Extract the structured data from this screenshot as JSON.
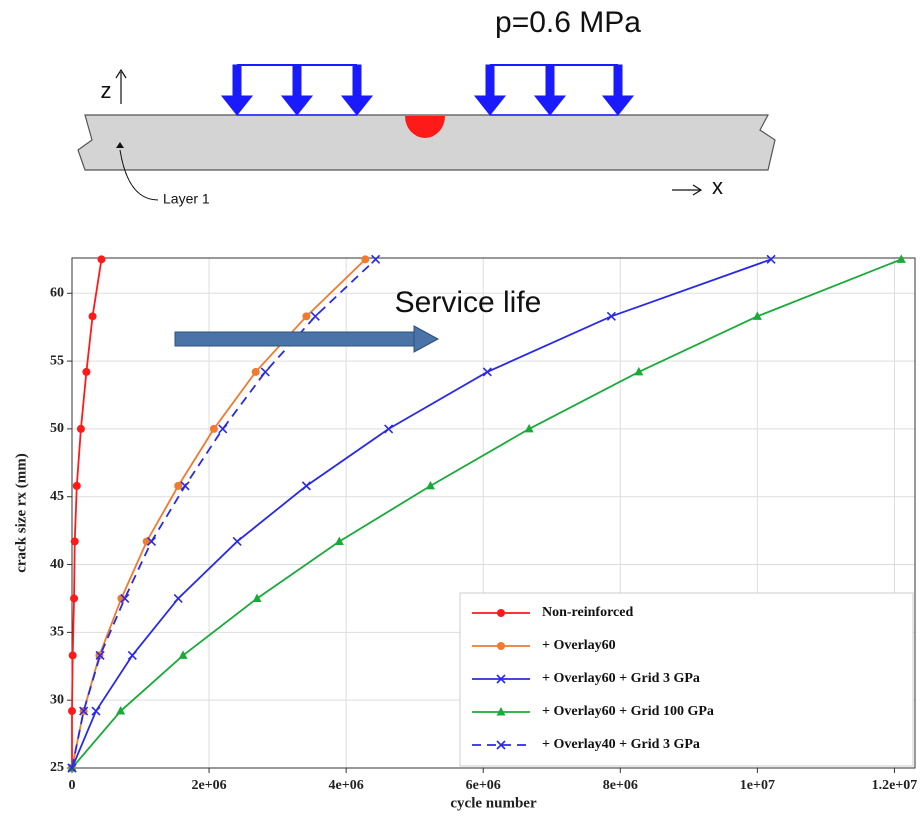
{
  "diagram": {
    "load_label": "p=0.6 MPa",
    "z_label": "z",
    "x_label": "x",
    "layer_label": "Layer 1"
  },
  "chart_data": {
    "type": "line",
    "x_label": "cycle number",
    "y_label": "crack size rx (mm)",
    "annotation": "Service life",
    "xlim": [
      0,
      12300000
    ],
    "ylim": [
      25,
      62.6
    ],
    "xticks": [
      0,
      {
        "value": 2000000,
        "label": "2e+06"
      },
      {
        "value": 4000000,
        "label": "4e+06"
      },
      {
        "value": 6000000,
        "label": "6e+06"
      },
      {
        "value": 8000000,
        "label": "8e+06"
      },
      {
        "value": 10000000,
        "label": "1e+07"
      },
      {
        "value": 12000000,
        "label": "1.2e+07"
      }
    ],
    "yticks": [
      25,
      30,
      35,
      40,
      45,
      50,
      55,
      60
    ],
    "grid": true,
    "legend": "lower right",
    "series": [
      {
        "name": "Non-reinforced",
        "color": "#ff1a1a",
        "marker": "circle",
        "dash": false,
        "x": [
          0,
          0,
          10000,
          30000,
          40000,
          70000,
          130000,
          210000,
          300000,
          430000
        ],
        "values": [
          25,
          29.2,
          33.3,
          37.5,
          41.7,
          45.8,
          50,
          54.2,
          58.3,
          62.5
        ]
      },
      {
        "name": "+ Overlay60",
        "color": "#f07a2e",
        "marker": "circle",
        "dash": false,
        "x": [
          0,
          170000,
          400000,
          720000,
          1090000,
          1550000,
          2070000,
          2680000,
          3420000,
          4280000
        ],
        "values": [
          25,
          29.2,
          33.3,
          37.5,
          41.7,
          45.8,
          50,
          54.2,
          58.3,
          62.5
        ]
      },
      {
        "name": "+ Overlay60 + Grid 3 GPa",
        "color": "#2a2ae6",
        "marker": "x",
        "dash": false,
        "x": [
          0,
          350000,
          880000,
          1550000,
          2410000,
          3420000,
          4620000,
          6060000,
          7870000,
          10200000
        ],
        "values": [
          25,
          29.2,
          33.3,
          37.5,
          41.7,
          45.8,
          50,
          54.2,
          58.3,
          62.5
        ]
      },
      {
        "name": "+ Overlay60 + Grid 100 GPa",
        "color": "#1aaa3a",
        "marker": "triangle",
        "dash": false,
        "x": [
          0,
          710000,
          1620000,
          2700000,
          3900000,
          5230000,
          6670000,
          8270000,
          10000000,
          12100000
        ],
        "values": [
          25,
          29.2,
          33.3,
          37.5,
          41.7,
          45.8,
          50,
          54.2,
          58.3,
          62.5
        ]
      },
      {
        "name": "+ Overlay40 + Grid 3 GPa",
        "color": "#2a2ae6",
        "marker": "x",
        "dash": true,
        "x": [
          0,
          170000,
          410000,
          770000,
          1160000,
          1650000,
          2200000,
          2820000,
          3550000,
          4430000
        ],
        "values": [
          25,
          29.2,
          33.3,
          37.5,
          41.7,
          45.8,
          50,
          54.2,
          58.3,
          62.5
        ]
      }
    ]
  }
}
